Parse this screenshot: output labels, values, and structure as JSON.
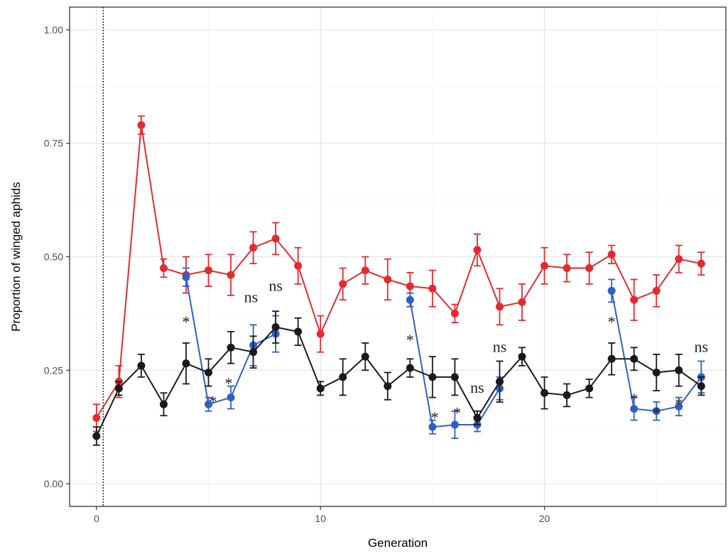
{
  "chart_data": {
    "type": "line",
    "title": "",
    "xlabel": "Generation",
    "ylabel": "Proportion of winged aphids",
    "xlim": [
      -1.2,
      28.1
    ],
    "ylim": [
      -0.05,
      1.05
    ],
    "xticks": [
      0,
      10,
      20
    ],
    "xtick_labels": [
      "0",
      "10",
      "20"
    ],
    "yticks": [
      0.0,
      0.25,
      0.5,
      0.75,
      1.0
    ],
    "ytick_labels": [
      "0.00",
      "0.25",
      "0.50",
      "0.75",
      "1.00"
    ],
    "grid": true,
    "legend": "none",
    "reference_line": {
      "x": 0.3,
      "style": "dotted"
    },
    "series": [
      {
        "color": "#e32b2f",
        "x": [
          0,
          1,
          2,
          3,
          4,
          5,
          6,
          7,
          8,
          9,
          10,
          11,
          12,
          13,
          14,
          15,
          16,
          17,
          18,
          19,
          20,
          21,
          22,
          23,
          24,
          25,
          26,
          27
        ],
        "y": [
          0.145,
          0.225,
          0.79,
          0.475,
          0.46,
          0.47,
          0.46,
          0.52,
          0.54,
          0.48,
          0.33,
          0.44,
          0.47,
          0.45,
          0.435,
          0.43,
          0.375,
          0.515,
          0.39,
          0.4,
          0.48,
          0.475,
          0.475,
          0.505,
          0.405,
          0.425,
          0.495,
          0.485
        ],
        "err": [
          0.03,
          0.035,
          0.02,
          0.02,
          0.04,
          0.035,
          0.045,
          0.035,
          0.035,
          0.04,
          0.04,
          0.035,
          0.03,
          0.045,
          0.03,
          0.04,
          0.02,
          0.035,
          0.04,
          0.04,
          0.04,
          0.03,
          0.035,
          0.02,
          0.045,
          0.035,
          0.03,
          0.025
        ]
      },
      {
        "color": "#2f5fc4",
        "segments": [
          {
            "x": [
              4,
              5,
              6,
              7,
              8
            ],
            "y": [
              0.455,
              0.175,
              0.19,
              0.305,
              0.33
            ],
            "err": [
              0.02,
              0.015,
              0.025,
              0.045,
              0.04
            ]
          },
          {
            "x": [
              14,
              15,
              16,
              17,
              18
            ],
            "y": [
              0.405,
              0.125,
              0.13,
              0.13,
              0.21
            ],
            "err": [
              0.015,
              0.015,
              0.03,
              0.015,
              0.025
            ]
          },
          {
            "x": [
              23,
              24,
              25,
              26,
              27
            ],
            "y": [
              0.425,
              0.165,
              0.16,
              0.17,
              0.235
            ],
            "err": [
              0.025,
              0.025,
              0.02,
              0.02,
              0.035
            ]
          }
        ]
      },
      {
        "color": "#1a1a1a",
        "x": [
          0,
          1,
          2,
          3,
          4,
          5,
          6,
          7,
          8,
          9,
          10,
          11,
          12,
          13,
          14,
          15,
          16,
          17,
          18,
          19,
          20,
          21,
          22,
          23,
          24,
          25,
          26,
          27
        ],
        "y": [
          0.105,
          0.21,
          0.26,
          0.175,
          0.265,
          0.245,
          0.3,
          0.29,
          0.345,
          0.335,
          0.21,
          0.235,
          0.28,
          0.215,
          0.255,
          0.235,
          0.235,
          0.145,
          0.225,
          0.28,
          0.2,
          0.195,
          0.21,
          0.275,
          0.275,
          0.245,
          0.25,
          0.215
        ],
        "err": [
          0.02,
          0.015,
          0.025,
          0.025,
          0.045,
          0.03,
          0.035,
          0.035,
          0.035,
          0.03,
          0.015,
          0.04,
          0.03,
          0.03,
          0.02,
          0.045,
          0.04,
          0.015,
          0.045,
          0.02,
          0.035,
          0.025,
          0.02,
          0.035,
          0.025,
          0.04,
          0.035,
          0.02
        ]
      }
    ],
    "annotations": [
      {
        "text": "*",
        "x": 4.0,
        "y": 0.345
      },
      {
        "text": "*",
        "x": 5.2,
        "y": 0.17
      },
      {
        "text": "*",
        "x": 5.9,
        "y": 0.21
      },
      {
        "text": "ns",
        "x": 6.9,
        "y": 0.4
      },
      {
        "text": "ns",
        "x": 8.0,
        "y": 0.425
      },
      {
        "text": "*",
        "x": 14.0,
        "y": 0.305
      },
      {
        "text": "*",
        "x": 15.1,
        "y": 0.135
      },
      {
        "text": "*",
        "x": 16.1,
        "y": 0.145
      },
      {
        "text": "ns",
        "x": 17.0,
        "y": 0.2
      },
      {
        "text": "ns",
        "x": 18.0,
        "y": 0.29
      },
      {
        "text": "*",
        "x": 23.0,
        "y": 0.345
      },
      {
        "text": "*",
        "x": 24.0,
        "y": 0.175
      },
      {
        "text": "*",
        "x": 25.0,
        "y": 0.145
      },
      {
        "text": "*",
        "x": 26.0,
        "y": 0.165
      },
      {
        "text": "ns",
        "x": 27.0,
        "y": 0.29
      }
    ]
  }
}
